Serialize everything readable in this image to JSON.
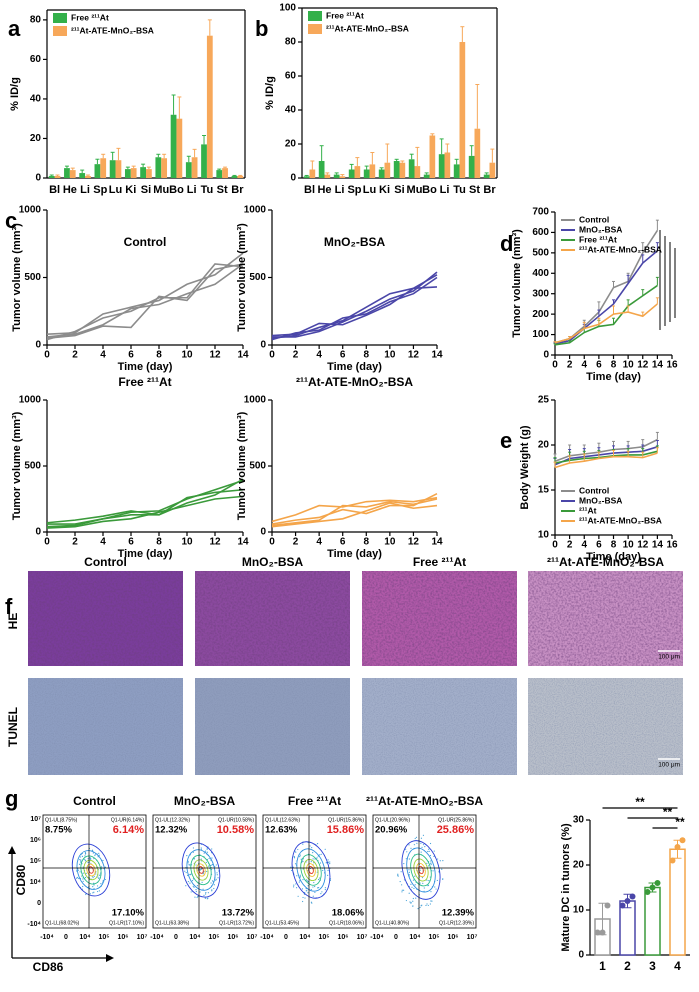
{
  "panel_labels": [
    "a",
    "b",
    "c",
    "d",
    "e",
    "f",
    "g"
  ],
  "chart_data": [
    {
      "type": "bar",
      "frame": true,
      "ylabel": "% ID/g",
      "legend": "upper left",
      "categories": [
        "Bl",
        "He",
        "Li",
        "Sp",
        "Lu",
        "Ki",
        "Si",
        "Mu",
        "Bo",
        "Li",
        "Tu",
        "St",
        "Br"
      ],
      "ylim": [
        0,
        85
      ],
      "yticks": [
        0,
        20,
        40,
        60,
        80
      ],
      "series": [
        {
          "name": "Free ²¹¹At",
          "color": "#33b04a",
          "values": [
            1,
            5,
            2.5,
            7,
            9,
            4.5,
            5.5,
            10.5,
            32,
            8,
            17,
            4,
            1
          ],
          "errors": [
            0.5,
            1,
            1.5,
            2.5,
            4,
            1,
            1.5,
            1.5,
            10,
            3,
            4.5,
            0.5,
            0.3
          ]
        },
        {
          "name": "²¹¹At-ATE-MnO₂-BSA",
          "color": "#f7a85a",
          "values": [
            1,
            4,
            1,
            10,
            9,
            5,
            4.5,
            10,
            30,
            10.5,
            72,
            5,
            1
          ],
          "errors": [
            0.5,
            1,
            0.5,
            2,
            6,
            1,
            1,
            2,
            11,
            4,
            8,
            0.5,
            0.3
          ]
        }
      ]
    },
    {
      "type": "bar",
      "frame": true,
      "ylabel": "% ID/g",
      "legend": "upper left",
      "categories": [
        "Bl",
        "He",
        "Li",
        "Sp",
        "Lu",
        "Ki",
        "Si",
        "Mu",
        "Bo",
        "Li",
        "Tu",
        "St",
        "Br"
      ],
      "ylim": [
        0,
        100
      ],
      "yticks": [
        0,
        20,
        40,
        60,
        80,
        100
      ],
      "series": [
        {
          "name": "Free ²¹¹At",
          "color": "#33b04a",
          "values": [
            1,
            10,
            2,
            5,
            5,
            5,
            10,
            11,
            2,
            14,
            8,
            13,
            2
          ],
          "errors": [
            0.5,
            9,
            1,
            3,
            2,
            1,
            1,
            3,
            1,
            9,
            3,
            6,
            1
          ]
        },
        {
          "name": "²¹¹At-ATE-MnO₂-BSA",
          "color": "#f7a85a",
          "values": [
            5,
            2,
            1,
            7,
            8,
            9,
            9,
            7,
            25,
            15,
            80,
            29,
            9
          ],
          "errors": [
            5,
            1,
            1,
            5,
            7,
            11,
            1,
            11,
            1,
            5,
            9,
            26,
            8
          ]
        }
      ]
    },
    {
      "type": "line",
      "title": "Control",
      "xlabel": "Time (day)",
      "ylabel": "Tumor volume (mm³)",
      "color": "#8c8c8c",
      "x": [
        0,
        2,
        4,
        6,
        8,
        10,
        12,
        14
      ],
      "xlim": [
        0,
        14
      ],
      "xticks": [
        0,
        2,
        4,
        6,
        8,
        10,
        12,
        14
      ],
      "ylim": [
        0,
        1000
      ],
      "yticks": [
        0,
        500,
        1000
      ],
      "series": [
        {
          "values": [
            60,
            80,
            150,
            270,
            300,
            380,
            450,
            600
          ]
        },
        {
          "values": [
            40,
            100,
            200,
            250,
            350,
            350,
            600,
            580
          ]
        },
        {
          "values": [
            80,
            90,
            230,
            280,
            330,
            450,
            520,
            680
          ]
        },
        {
          "values": [
            50,
            70,
            140,
            130,
            360,
            330,
            560,
            600
          ]
        }
      ]
    },
    {
      "type": "line",
      "title": "MnO₂-BSA",
      "xlabel": "Time (day)",
      "ylabel": "Tumor volume (mm³)",
      "color": "#4a46a8",
      "x": [
        0,
        2,
        4,
        6,
        8,
        10,
        12,
        14
      ],
      "xlim": [
        0,
        14
      ],
      "xticks": [
        0,
        2,
        4,
        6,
        8,
        10,
        12,
        14
      ],
      "ylim": [
        0,
        1000
      ],
      "yticks": [
        0,
        500,
        1000
      ],
      "series": [
        {
          "values": [
            60,
            60,
            100,
            170,
            250,
            340,
            400,
            540
          ]
        },
        {
          "values": [
            50,
            70,
            130,
            180,
            280,
            380,
            420,
            430
          ]
        },
        {
          "values": [
            70,
            80,
            160,
            150,
            220,
            300,
            420,
            520
          ]
        },
        {
          "values": [
            40,
            90,
            110,
            200,
            230,
            320,
            380,
            500
          ]
        }
      ]
    },
    {
      "type": "line",
      "title": "Free ²¹¹At",
      "xlabel": "Time (day)",
      "ylabel": "Tumor volume (mm³)",
      "color": "#3a9a3a",
      "x": [
        0,
        2,
        4,
        6,
        8,
        10,
        12,
        14
      ],
      "xlim": [
        0,
        14
      ],
      "xticks": [
        0,
        2,
        4,
        6,
        8,
        10,
        12,
        14
      ],
      "ylim": [
        0,
        1000
      ],
      "yticks": [
        0,
        500,
        1000
      ],
      "series": [
        {
          "values": [
            60,
            60,
            100,
            130,
            130,
            220,
            280,
            400
          ]
        },
        {
          "values": [
            40,
            50,
            100,
            150,
            160,
            250,
            320,
            390
          ]
        },
        {
          "values": [
            30,
            40,
            80,
            100,
            150,
            200,
            250,
            270
          ]
        },
        {
          "values": [
            70,
            90,
            120,
            160,
            130,
            260,
            300,
            320
          ]
        }
      ]
    },
    {
      "type": "line",
      "title": "²¹¹At-ATE-MnO₂-BSA",
      "xlabel": "Time (day)",
      "ylabel": "Tumor volume (mm³)",
      "color": "#f4a54a",
      "x": [
        0,
        2,
        4,
        6,
        8,
        10,
        12,
        14
      ],
      "xlim": [
        0,
        14
      ],
      "xticks": [
        0,
        2,
        4,
        6,
        8,
        10,
        12,
        14
      ],
      "ylim": [
        0,
        1000
      ],
      "yticks": [
        0,
        500,
        1000
      ],
      "series": [
        {
          "values": [
            60,
            90,
            110,
            170,
            140,
            200,
            200,
            290
          ]
        },
        {
          "values": [
            40,
            60,
            80,
            100,
            160,
            220,
            180,
            200
          ]
        },
        {
          "values": [
            50,
            70,
            90,
            200,
            190,
            230,
            210,
            250
          ]
        },
        {
          "values": [
            80,
            130,
            200,
            190,
            230,
            240,
            230,
            260
          ]
        }
      ]
    },
    {
      "type": "line",
      "xlabel": "Time (day)",
      "ylabel": "Tumor volume (mm³)",
      "legend": "upper left",
      "x": [
        0,
        2,
        4,
        6,
        8,
        10,
        12,
        14
      ],
      "xlim": [
        0,
        16
      ],
      "xticks": [
        0,
        2,
        4,
        6,
        8,
        10,
        12,
        14,
        16
      ],
      "ylim": [
        0,
        700
      ],
      "yticks": [
        0,
        100,
        200,
        300,
        400,
        500,
        600,
        700
      ],
      "series": [
        {
          "name": "Control",
          "color": "#8c8c8c",
          "values": [
            60,
            80,
            140,
            210,
            330,
            360,
            500,
            610
          ],
          "errors": [
            5,
            10,
            30,
            50,
            30,
            40,
            50,
            50
          ]
        },
        {
          "name": "MnO₂-BSA",
          "color": "#4a46a8",
          "values": [
            55,
            70,
            130,
            190,
            250,
            350,
            450,
            510
          ],
          "errors": [
            5,
            10,
            20,
            30,
            20,
            40,
            40,
            40
          ]
        },
        {
          "name": "Free ²¹¹At",
          "color": "#3a9a3a",
          "values": [
            50,
            60,
            110,
            140,
            150,
            240,
            290,
            340
          ],
          "errors": [
            5,
            10,
            20,
            30,
            30,
            30,
            30,
            40
          ]
        },
        {
          "name": "²¹¹At-ATE-MnO₂-BSA",
          "color": "#f4a54a",
          "values": [
            60,
            80,
            130,
            150,
            200,
            210,
            190,
            250
          ],
          "errors": [
            5,
            10,
            30,
            30,
            40,
            30,
            20,
            30
          ]
        }
      ]
    },
    {
      "type": "line",
      "xlabel": "Time (day)",
      "ylabel": "Body Weight (g)",
      "legend": "lower left",
      "x": [
        0,
        2,
        4,
        6,
        8,
        10,
        12,
        14
      ],
      "xlim": [
        0,
        16
      ],
      "xticks": [
        0,
        2,
        4,
        6,
        8,
        10,
        12,
        14,
        16
      ],
      "ylim": [
        10,
        25
      ],
      "yticks": [
        10,
        15,
        20,
        25
      ],
      "series": [
        {
          "name": "Control",
          "color": "#8c8c8c",
          "values": [
            18.2,
            18.8,
            19.0,
            19.2,
            19.5,
            19.6,
            19.8,
            20.6
          ],
          "errors": [
            0.8,
            1.2,
            1.0,
            1.0,
            0.9,
            0.8,
            0.8,
            0.8
          ]
        },
        {
          "name": "MnO₂-BSA",
          "color": "#4a46a8",
          "values": [
            17.8,
            18.5,
            18.7,
            18.9,
            19.1,
            19.2,
            19.3,
            19.8
          ],
          "errors": [
            0.7,
            1.0,
            0.9,
            0.8,
            0.8,
            0.7,
            0.7,
            0.7
          ]
        },
        {
          "name": "²¹¹At",
          "color": "#3a9a3a",
          "values": [
            18.0,
            18.3,
            18.5,
            18.6,
            18.8,
            18.9,
            18.9,
            19.3
          ],
          "errors": [
            0.6,
            0.9,
            0.8,
            0.8,
            0.7,
            0.7,
            0.7,
            0.6
          ]
        },
        {
          "name": "²¹¹At-ATE-MnO₂-BSA",
          "color": "#f4a54a",
          "values": [
            17.5,
            18.0,
            18.2,
            18.5,
            18.7,
            18.7,
            18.6,
            19.1
          ],
          "errors": [
            0.6,
            0.8,
            0.8,
            0.7,
            0.7,
            0.6,
            0.6,
            0.6
          ]
        }
      ]
    },
    {
      "type": "bar",
      "ylabel": "Mature DC in tumors (%)",
      "categories": [
        "1",
        "2",
        "3",
        "4"
      ],
      "colors": [
        "#9a9a9a",
        "#4a46a8",
        "#3a9a3a",
        "#f4a54a"
      ],
      "values": [
        8,
        12,
        15,
        23.5
      ],
      "errors": [
        3.5,
        1.5,
        1,
        2
      ],
      "points": [
        [
          5,
          5,
          11
        ],
        [
          11,
          12,
          13
        ],
        [
          14,
          15,
          16
        ],
        [
          21,
          24,
          25.5
        ]
      ],
      "ylim": [
        0,
        30
      ],
      "yticks": [
        0,
        10,
        20,
        30
      ],
      "annotations": [
        "**",
        "**",
        "**"
      ]
    }
  ],
  "histology": {
    "columns": [
      "Control",
      "MnO₂-BSA",
      "Free ²¹¹At",
      "²¹¹At-ATE-MnO₂-BSA"
    ],
    "rows": [
      "HE",
      "TUNEL"
    ],
    "scale_bar": "100 μm"
  },
  "flow": {
    "y_label": "CD80",
    "x_label": "CD86",
    "y_ticks": [
      "10⁷",
      "10⁶",
      "10⁵",
      "10⁴",
      "0",
      "-10⁴"
    ],
    "x_ticks": [
      "-10⁴",
      "0",
      "10⁴",
      "10⁵",
      "10⁶",
      "10⁷"
    ],
    "panels": [
      {
        "title": "Control",
        "ul_gate": "Q1-UL(8.75%)",
        "ur_gate": "Q1-UR(6.14%)",
        "ll_gate": "Q1-LL(68.02%)",
        "lr_gate": "Q1-LR(17.10%)",
        "ul": "8.75%",
        "ur": "6.14%",
        "lr": "17.10%"
      },
      {
        "title": "MnO₂-BSA",
        "ul_gate": "Q1-UL(12.32%)",
        "ur_gate": "Q1-UR(10.58%)",
        "ll_gate": "Q1-LL(63.38%)",
        "lr_gate": "Q1-LR(13.72%)",
        "ul": "12.32%",
        "ur": "10.58%",
        "lr": "13.72%"
      },
      {
        "title": "Free ²¹¹At",
        "ul_gate": "Q1-UL(12.63%)",
        "ur_gate": "Q1-UR(15.86%)",
        "ll_gate": "Q1-LL(53.45%)",
        "lr_gate": "Q1-LR(18.06%)",
        "ul": "12.63%",
        "ur": "15.86%",
        "lr": "18.06%"
      },
      {
        "title": "²¹¹At-ATE-MnO₂-BSA",
        "ul_gate": "Q1-UL(20.96%)",
        "ur_gate": "Q1-UR(25.86%)",
        "ll_gate": "Q1-LL(40.80%)",
        "lr_gate": "Q1-LR(12.39%)",
        "ul": "20.96%",
        "ur": "25.86%",
        "lr": "12.39%"
      }
    ]
  }
}
